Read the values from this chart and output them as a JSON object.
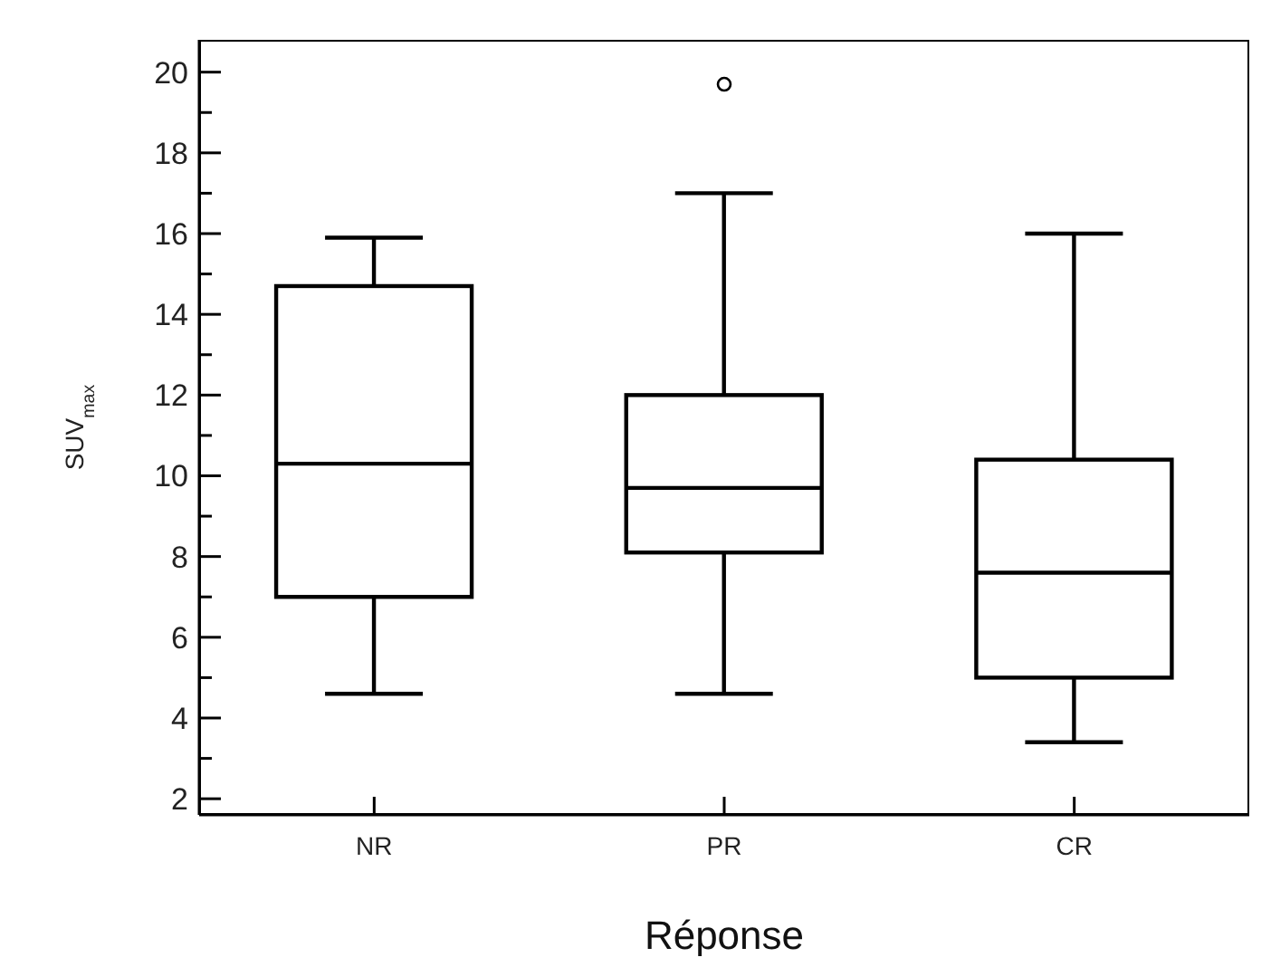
{
  "chart_data": {
    "type": "box",
    "xlabel": "Réponse",
    "ylabel": "SUV$_{max}$",
    "categories": [
      "NR",
      "PR",
      "CR"
    ],
    "color": "#000000",
    "marker": "circle",
    "boxes": [
      {
        "low": 4.6,
        "q1": 7.0,
        "median": 10.3,
        "q3": 14.7,
        "high": 15.9
      },
      {
        "low": 4.6,
        "q1": 8.1,
        "median": 9.7,
        "q3": 12.0,
        "high": 17.0,
        "outliers": [
          19.7
        ]
      },
      {
        "low": 3.4,
        "q1": 5.0,
        "median": 7.6,
        "q3": 10.4,
        "high": 16.0
      }
    ],
    "ylim": [
      1.6,
      20.8
    ],
    "yticks": [
      2,
      {
        "value": 3,
        "label": null
      },
      4,
      {
        "value": 5,
        "label": null
      },
      6,
      {
        "value": 7,
        "label": null
      },
      8,
      {
        "value": 9,
        "label": null
      },
      10,
      {
        "value": 11,
        "label": null
      },
      12,
      {
        "value": 13,
        "label": null
      },
      14,
      {
        "value": 15,
        "label": null
      },
      16,
      {
        "value": 17,
        "label": null
      },
      18,
      {
        "value": 19,
        "label": null
      },
      20
    ]
  }
}
